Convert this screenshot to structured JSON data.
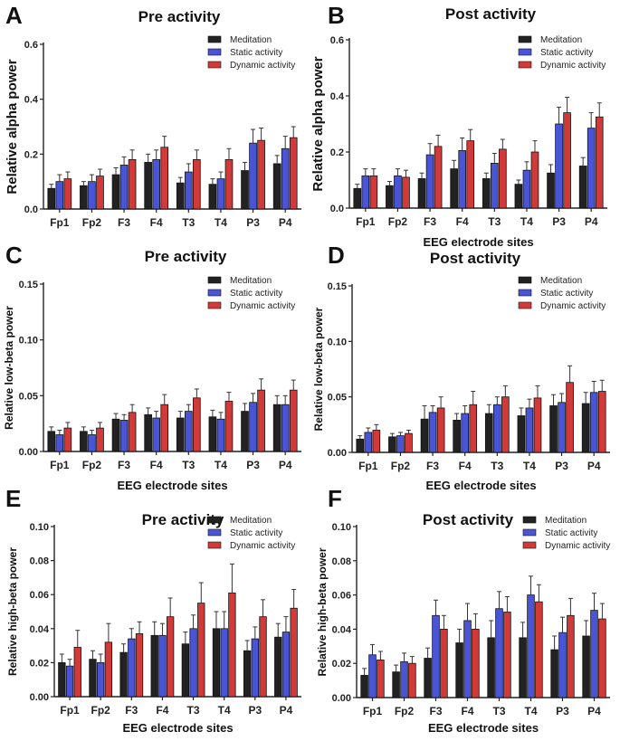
{
  "colors": {
    "meditation": "#222222",
    "static": "#4a55d6",
    "dynamic": "#d23a3a"
  },
  "chart_data": [
    {
      "letter": "A",
      "type": "bar",
      "title": "Pre activity",
      "ylabel": "Relative alpha power",
      "xlabel": "",
      "categories": [
        "Fp1",
        "Fp2",
        "F3",
        "F4",
        "T3",
        "T4",
        "P3",
        "P4"
      ],
      "ylim": [
        0,
        0.6
      ],
      "yticks": [
        "0.0",
        "0.2",
        "0.4",
        "0.6"
      ],
      "yticks_values": [
        0,
        0.2,
        0.4,
        0.6
      ],
      "legend": "top-right",
      "series": [
        {
          "name": "Meditation",
          "values": [
            0.075,
            0.085,
            0.125,
            0.17,
            0.095,
            0.09,
            0.14,
            0.165
          ],
          "errors": [
            0.015,
            0.015,
            0.025,
            0.03,
            0.02,
            0.02,
            0.03,
            0.03
          ]
        },
        {
          "name": "Static activity",
          "values": [
            0.1,
            0.1,
            0.16,
            0.18,
            0.135,
            0.11,
            0.24,
            0.22
          ],
          "errors": [
            0.025,
            0.025,
            0.03,
            0.035,
            0.03,
            0.025,
            0.05,
            0.045
          ]
        },
        {
          "name": "Dynamic activity",
          "values": [
            0.11,
            0.12,
            0.18,
            0.225,
            0.18,
            0.18,
            0.25,
            0.26
          ],
          "errors": [
            0.025,
            0.025,
            0.035,
            0.04,
            0.035,
            0.04,
            0.045,
            0.04
          ]
        }
      ]
    },
    {
      "letter": "B",
      "type": "bar",
      "title": "Post activity",
      "ylabel": "Relative alpha power",
      "xlabel": "EEG electrode sites",
      "categories": [
        "Fp1",
        "Fp2",
        "F3",
        "F4",
        "T3",
        "T4",
        "P3",
        "P4"
      ],
      "ylim": [
        0,
        0.6
      ],
      "yticks": [
        "0.0",
        "0.2",
        "0.4",
        "0.6"
      ],
      "yticks_values": [
        0,
        0.2,
        0.4,
        0.6
      ],
      "legend": "top-right",
      "series": [
        {
          "name": "Meditation",
          "values": [
            0.07,
            0.08,
            0.105,
            0.14,
            0.105,
            0.085,
            0.125,
            0.15
          ],
          "errors": [
            0.015,
            0.015,
            0.02,
            0.03,
            0.02,
            0.015,
            0.03,
            0.03
          ]
        },
        {
          "name": "Static activity",
          "values": [
            0.115,
            0.115,
            0.19,
            0.205,
            0.16,
            0.135,
            0.3,
            0.285
          ],
          "errors": [
            0.025,
            0.025,
            0.04,
            0.045,
            0.035,
            0.03,
            0.06,
            0.055
          ]
        },
        {
          "name": "Dynamic activity",
          "values": [
            0.115,
            0.11,
            0.22,
            0.24,
            0.21,
            0.2,
            0.34,
            0.325
          ],
          "errors": [
            0.025,
            0.025,
            0.04,
            0.04,
            0.035,
            0.04,
            0.055,
            0.05
          ]
        }
      ]
    },
    {
      "letter": "C",
      "type": "bar",
      "title": "Pre activity",
      "ylabel": "Relative low-beta power",
      "xlabel": "EEG electrode sites",
      "categories": [
        "Fp1",
        "Fp2",
        "F3",
        "F4",
        "T3",
        "T4",
        "P3",
        "P4"
      ],
      "ylim": [
        0,
        0.15
      ],
      "yticks": [
        "0.00",
        "0.05",
        "0.10",
        "0.15"
      ],
      "yticks_values": [
        0,
        0.05,
        0.1,
        0.15
      ],
      "legend": "top-right",
      "series": [
        {
          "name": "Meditation",
          "values": [
            0.018,
            0.018,
            0.029,
            0.033,
            0.03,
            0.031,
            0.036,
            0.042
          ],
          "errors": [
            0.004,
            0.004,
            0.005,
            0.006,
            0.006,
            0.006,
            0.007,
            0.008
          ]
        },
        {
          "name": "Static activity",
          "values": [
            0.015,
            0.015,
            0.028,
            0.03,
            0.036,
            0.029,
            0.044,
            0.042
          ],
          "errors": [
            0.004,
            0.004,
            0.005,
            0.006,
            0.006,
            0.006,
            0.008,
            0.008
          ]
        },
        {
          "name": "Dynamic activity",
          "values": [
            0.021,
            0.021,
            0.035,
            0.042,
            0.048,
            0.045,
            0.055,
            0.055
          ],
          "errors": [
            0.005,
            0.005,
            0.007,
            0.009,
            0.008,
            0.008,
            0.01,
            0.009
          ]
        }
      ]
    },
    {
      "letter": "D",
      "type": "bar",
      "title": "Post activity",
      "ylabel": "Relative low-beta power",
      "xlabel": "EEG electrode sites",
      "categories": [
        "Fp1",
        "Fp2",
        "F3",
        "F4",
        "T3",
        "T4",
        "P3",
        "P4"
      ],
      "ylim": [
        0,
        0.15
      ],
      "yticks": [
        "0.00",
        "0.05",
        "0.10",
        "0.15"
      ],
      "yticks_values": [
        0,
        0.05,
        0.1,
        0.15
      ],
      "legend": "top-right",
      "series": [
        {
          "name": "Meditation",
          "values": [
            0.012,
            0.014,
            0.03,
            0.029,
            0.035,
            0.033,
            0.042,
            0.044
          ],
          "errors": [
            0.003,
            0.003,
            0.012,
            0.006,
            0.008,
            0.007,
            0.01,
            0.01
          ]
        },
        {
          "name": "Static activity",
          "values": [
            0.018,
            0.015,
            0.036,
            0.035,
            0.043,
            0.04,
            0.045,
            0.054
          ],
          "errors": [
            0.004,
            0.003,
            0.006,
            0.007,
            0.007,
            0.008,
            0.008,
            0.01
          ]
        },
        {
          "name": "Dynamic activity",
          "values": [
            0.02,
            0.017,
            0.04,
            0.043,
            0.05,
            0.049,
            0.063,
            0.055
          ],
          "errors": [
            0.005,
            0.003,
            0.01,
            0.012,
            0.01,
            0.011,
            0.015,
            0.01
          ]
        }
      ]
    },
    {
      "letter": "E",
      "type": "bar",
      "title": "Pre activity",
      "ylabel": "Relative high-beta power",
      "xlabel": "EEG electrode sites",
      "categories": [
        "Fp1",
        "Fp2",
        "F3",
        "F4",
        "T3",
        "T4",
        "P3",
        "P4"
      ],
      "ylim": [
        0,
        0.1
      ],
      "yticks": [
        "0.00",
        "0.02",
        "0.04",
        "0.06",
        "0.08",
        "0.10"
      ],
      "yticks_values": [
        0,
        0.02,
        0.04,
        0.06,
        0.08,
        0.1
      ],
      "legend": "top-right",
      "series": [
        {
          "name": "Meditation",
          "values": [
            0.02,
            0.022,
            0.026,
            0.036,
            0.031,
            0.04,
            0.027,
            0.035
          ],
          "errors": [
            0.005,
            0.005,
            0.005,
            0.008,
            0.007,
            0.01,
            0.006,
            0.008
          ]
        },
        {
          "name": "Static activity",
          "values": [
            0.018,
            0.02,
            0.034,
            0.036,
            0.04,
            0.04,
            0.034,
            0.038
          ],
          "errors": [
            0.004,
            0.005,
            0.006,
            0.007,
            0.008,
            0.01,
            0.007,
            0.009
          ]
        },
        {
          "name": "Dynamic activity",
          "values": [
            0.029,
            0.032,
            0.037,
            0.047,
            0.055,
            0.061,
            0.047,
            0.052
          ],
          "errors": [
            0.01,
            0.011,
            0.007,
            0.011,
            0.012,
            0.017,
            0.01,
            0.011
          ]
        }
      ]
    },
    {
      "letter": "F",
      "type": "bar",
      "title": "Post activity",
      "ylabel": "Relative high-beta power",
      "xlabel": "EEG electrode sites",
      "categories": [
        "Fp1",
        "Fp2",
        "F3",
        "F4",
        "T3",
        "T4",
        "P3",
        "P4"
      ],
      "ylim": [
        0,
        0.1
      ],
      "yticks": [
        "0.00",
        "0.02",
        "0.04",
        "0.06",
        "0.08",
        "0.10"
      ],
      "yticks_values": [
        0,
        0.02,
        0.04,
        0.06,
        0.08,
        0.1
      ],
      "legend": "top-right",
      "series": [
        {
          "name": "Meditation",
          "values": [
            0.013,
            0.015,
            0.023,
            0.032,
            0.035,
            0.035,
            0.028,
            0.036
          ],
          "errors": [
            0.004,
            0.004,
            0.006,
            0.008,
            0.01,
            0.009,
            0.008,
            0.009
          ]
        },
        {
          "name": "Static activity",
          "values": [
            0.025,
            0.021,
            0.048,
            0.045,
            0.052,
            0.06,
            0.038,
            0.051
          ],
          "errors": [
            0.006,
            0.005,
            0.009,
            0.01,
            0.01,
            0.011,
            0.009,
            0.01
          ]
        },
        {
          "name": "Dynamic activity",
          "values": [
            0.022,
            0.02,
            0.04,
            0.04,
            0.05,
            0.056,
            0.048,
            0.046
          ],
          "errors": [
            0.005,
            0.004,
            0.008,
            0.009,
            0.009,
            0.01,
            0.01,
            0.009
          ]
        }
      ]
    }
  ]
}
